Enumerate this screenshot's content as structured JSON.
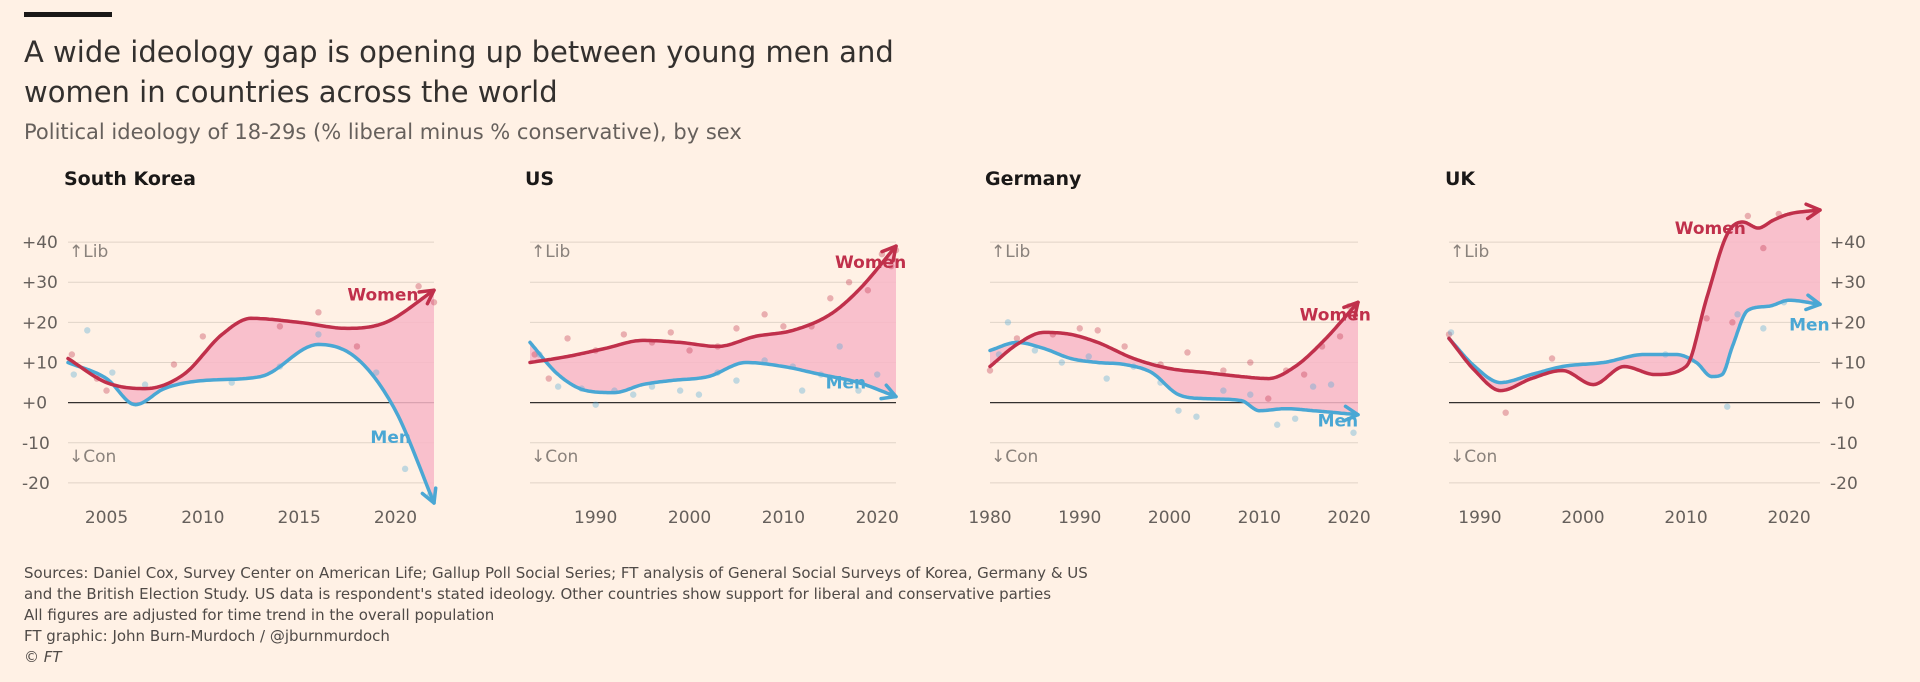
{
  "header": {
    "title": "A wide ideology gap is opening up between young men and women in countries across the world",
    "subtitle": "Political ideology of 18-29s (% liberal minus % conservative), by sex"
  },
  "footer": {
    "line1": "Sources: Daniel Cox, Survey Center on American Life; Gallup Poll Social Series; FT analysis of General Social Surveys of Korea, Germany & US",
    "line2": "and the British Election Study. US data is respondent's stated ideology. Other countries show support for liberal and conservative parties",
    "line3": "All figures are adjusted for time trend in the overall population",
    "line4": "FT graphic: John Burn-Murdoch / @jburnmurdoch",
    "copyright": "© FT"
  },
  "colors": {
    "women": "#c0304b",
    "men": "#4aa7d4",
    "gap_fill": "#f8b7c8",
    "gridline": "#e0d4c8",
    "zero_line": "#33302e",
    "background": "#fff1e5"
  },
  "chart_data": [
    {
      "type": "line",
      "title": "South Korea",
      "xlim": [
        2003,
        2022
      ],
      "ylim": [
        -25,
        45
      ],
      "x_ticks": [
        2005,
        2010,
        2015,
        2020
      ],
      "y_ticks": [
        "+40",
        "+30",
        "+20",
        "+10",
        "+0",
        "-10",
        "-20"
      ],
      "y_tick_values": [
        40,
        30,
        20,
        10,
        0,
        -10,
        -20
      ],
      "y_axis_side": "left",
      "annotations": {
        "lib": "↑Lib",
        "con": "↓Con"
      },
      "gap_fill": true,
      "series": [
        {
          "name": "Women",
          "x": [
            2003,
            2005,
            2007,
            2009,
            2011,
            2012.5,
            2015,
            2017.5,
            2019.5,
            2022
          ],
          "y": [
            11,
            5,
            3.5,
            7,
            17,
            21,
            20,
            18.5,
            20,
            28
          ]
        },
        {
          "name": "Men",
          "x": [
            2003,
            2005,
            2006.5,
            2008,
            2010,
            2013,
            2016,
            2018,
            2020,
            2022
          ],
          "y": [
            10,
            6,
            -0.5,
            3.5,
            5.5,
            6.5,
            14.5,
            11,
            -2,
            -25
          ]
        }
      ],
      "scatter": {
        "women": [
          [
            2003.2,
            12
          ],
          [
            2004.5,
            6
          ],
          [
            2005,
            3
          ],
          [
            2008.5,
            9.5
          ],
          [
            2010,
            16.5
          ],
          [
            2014,
            19
          ],
          [
            2016,
            22.5
          ],
          [
            2018,
            14
          ],
          [
            2021.2,
            29
          ],
          [
            2022,
            25
          ]
        ],
        "men": [
          [
            2003.3,
            7
          ],
          [
            2004,
            18
          ],
          [
            2005.3,
            7.5
          ],
          [
            2007,
            4.5
          ],
          [
            2011.5,
            5
          ],
          [
            2014,
            9
          ],
          [
            2016,
            17
          ],
          [
            2019,
            7.5
          ],
          [
            2020.5,
            -16.5
          ],
          [
            2021.8,
            -23
          ]
        ]
      },
      "labels": [
        {
          "text": "Women",
          "series": "Women",
          "x": 2017.5,
          "y": 25.5
        },
        {
          "text": "Men",
          "series": "Men",
          "x": 2018.7,
          "y": -10
        }
      ]
    },
    {
      "type": "line",
      "title": "US",
      "xlim": [
        1983,
        2022
      ],
      "ylim": [
        -25,
        45
      ],
      "x_ticks": [
        1990,
        2000,
        2010,
        2020
      ],
      "y_ticks": [
        "+40",
        "+30",
        "+20",
        "+10",
        "+0",
        "-10",
        "-20"
      ],
      "y_tick_values": [
        40,
        30,
        20,
        10,
        0,
        -10,
        -20
      ],
      "y_axis_side": "none",
      "annotations": {
        "lib": "↑Lib",
        "con": "↓Con"
      },
      "gap_fill": true,
      "series": [
        {
          "name": "Women",
          "x": [
            1983,
            1987,
            1991,
            1995,
            1999,
            2003,
            2007,
            2011,
            2015,
            2018,
            2022
          ],
          "y": [
            10,
            11.5,
            13.5,
            15.5,
            15,
            14,
            16.5,
            18,
            22,
            28,
            39
          ]
        },
        {
          "name": "Men",
          "x": [
            1983,
            1986,
            1989,
            1992,
            1995,
            1998,
            2002,
            2006,
            2010,
            2014,
            2018,
            2022
          ],
          "y": [
            15,
            7,
            3,
            2.5,
            4.5,
            5.5,
            6.5,
            10,
            9,
            7,
            5,
            1.5
          ]
        }
      ],
      "scatter": {
        "women": [
          [
            1983.5,
            12
          ],
          [
            1985,
            6
          ],
          [
            1987,
            16
          ],
          [
            1990,
            13
          ],
          [
            1993,
            17
          ],
          [
            1996,
            15
          ],
          [
            1998,
            17.5
          ],
          [
            2000,
            13
          ],
          [
            2003,
            14
          ],
          [
            2005,
            18.5
          ],
          [
            2008,
            22
          ],
          [
            2010,
            19
          ],
          [
            2013,
            19
          ],
          [
            2015,
            26
          ],
          [
            2017,
            30
          ],
          [
            2019,
            28
          ],
          [
            2020.5,
            37
          ],
          [
            2021.5,
            34
          ],
          [
            2022,
            38
          ]
        ],
        "men": [
          [
            1984,
            12
          ],
          [
            1986,
            4
          ],
          [
            1988.5,
            3.5
          ],
          [
            1990,
            -0.5
          ],
          [
            1992,
            3
          ],
          [
            1994,
            2
          ],
          [
            1996,
            4
          ],
          [
            1999,
            3
          ],
          [
            2001,
            2
          ],
          [
            2003,
            7.5
          ],
          [
            2005,
            5.5
          ],
          [
            2008,
            10.5
          ],
          [
            2011,
            9
          ],
          [
            2012,
            3
          ],
          [
            2014,
            7
          ],
          [
            2016,
            14
          ],
          [
            2018,
            3
          ],
          [
            2020,
            7
          ],
          [
            2021.5,
            2
          ]
        ]
      },
      "labels": [
        {
          "text": "Women",
          "series": "Women",
          "x": 2015.5,
          "y": 33.5
        },
        {
          "text": "Men",
          "series": "Men",
          "x": 2014.5,
          "y": 3.5
        }
      ]
    },
    {
      "type": "line",
      "title": "Germany",
      "xlim": [
        1980,
        2021
      ],
      "ylim": [
        -25,
        45
      ],
      "x_ticks": [
        1980,
        1990,
        2000,
        2010,
        2020
      ],
      "y_ticks": [
        "+40",
        "+30",
        "+20",
        "+10",
        "+0",
        "-10",
        "-20"
      ],
      "y_tick_values": [
        40,
        30,
        20,
        10,
        0,
        -10,
        -20
      ],
      "y_axis_side": "none",
      "annotations": {
        "lib": "↑Lib",
        "con": "↓Con"
      },
      "gap_fill": true,
      "series": [
        {
          "name": "Women",
          "x": [
            1980,
            1983,
            1986,
            1989,
            1992,
            1996,
            2000,
            2004,
            2008,
            2011,
            2014,
            2017,
            2021
          ],
          "y": [
            9,
            14.5,
            17.5,
            17,
            15,
            11,
            8.5,
            7.5,
            6.5,
            6,
            9,
            15,
            25
          ]
        },
        {
          "name": "Men",
          "x": [
            1980,
            1983,
            1986,
            1989,
            1992,
            1995,
            1998,
            2001,
            2004,
            2008,
            2010,
            2013,
            2016,
            2021
          ],
          "y": [
            13,
            15,
            13.5,
            11,
            10,
            9.5,
            7.5,
            2,
            1,
            0.5,
            -2,
            -1.5,
            -2,
            -3
          ]
        }
      ],
      "scatter": {
        "women": [
          [
            1980,
            8
          ],
          [
            1983,
            16
          ],
          [
            1987,
            17
          ],
          [
            1990,
            18.5
          ],
          [
            1992,
            18
          ],
          [
            1995,
            14
          ],
          [
            1999,
            9.5
          ],
          [
            2002,
            12.5
          ],
          [
            2006,
            8
          ],
          [
            2009,
            10
          ],
          [
            2011,
            1
          ],
          [
            2013,
            8
          ],
          [
            2015,
            7
          ],
          [
            2017,
            14
          ],
          [
            2019,
            16.5
          ],
          [
            2020,
            24
          ]
        ],
        "men": [
          [
            1981,
            12
          ],
          [
            1982,
            20
          ],
          [
            1985,
            13
          ],
          [
            1988,
            10
          ],
          [
            1991,
            11.5
          ],
          [
            1993,
            6
          ],
          [
            1996,
            9
          ],
          [
            1999,
            5
          ],
          [
            2001,
            -2
          ],
          [
            2003,
            -3.5
          ],
          [
            2006,
            3
          ],
          [
            2009,
            2
          ],
          [
            2012,
            -5.5
          ],
          [
            2014,
            -4
          ],
          [
            2016,
            4
          ],
          [
            2018,
            4.5
          ],
          [
            2020.5,
            -7.5
          ]
        ]
      },
      "labels": [
        {
          "text": "Women",
          "series": "Women",
          "x": 2014.5,
          "y": 20.5
        },
        {
          "text": "Men",
          "series": "Men",
          "x": 2016.5,
          "y": -6
        }
      ]
    },
    {
      "type": "line",
      "title": "UK",
      "xlim": [
        1987,
        2023
      ],
      "ylim": [
        -25,
        45
      ],
      "x_ticks": [
        1990,
        2000,
        2010,
        2020
      ],
      "y_ticks": [
        "+40",
        "+30",
        "+20",
        "+10",
        "+0",
        "-10",
        "-20"
      ],
      "y_tick_values": [
        40,
        30,
        20,
        10,
        0,
        -10,
        -20
      ],
      "y_axis_side": "right",
      "annotations": {
        "lib": "↑Lib",
        "con": "↓Con"
      },
      "gap_fill": true,
      "series": [
        {
          "name": "Women",
          "x": [
            1987,
            1989.5,
            1992,
            1995,
            1998,
            2001,
            2004,
            2007,
            2010,
            2012,
            2014,
            2015.5,
            2017,
            2018.5,
            2020,
            2023
          ],
          "y": [
            16,
            8,
            3,
            6,
            8,
            4.5,
            9,
            7,
            9,
            26,
            42,
            45,
            43.5,
            45.5,
            47,
            48
          ]
        },
        {
          "name": "Men",
          "x": [
            1987,
            1989.5,
            1992,
            1995,
            1998,
            2002,
            2006,
            2009,
            2011,
            2012.5,
            2013.5,
            2014.5,
            2016,
            2018,
            2020,
            2023
          ],
          "y": [
            16,
            9,
            5,
            7,
            9,
            10,
            12,
            12,
            10,
            6.5,
            7,
            14,
            23,
            24,
            25.5,
            24.5
          ]
        }
      ],
      "scatter": {
        "women": [
          [
            1987,
            17
          ],
          [
            1992.5,
            -2.5
          ],
          [
            1997,
            11
          ],
          [
            2012,
            21
          ],
          [
            2014.5,
            20
          ],
          [
            2016,
            46.5
          ],
          [
            2017.5,
            38.5
          ],
          [
            2019,
            47
          ]
        ],
        "men": [
          [
            1987.2,
            17.5
          ],
          [
            2008,
            12
          ],
          [
            2014,
            -1
          ],
          [
            2015,
            22
          ],
          [
            2017.5,
            18.5
          ],
          [
            2019.5,
            25
          ]
        ]
      },
      "labels": [
        {
          "text": "Women",
          "series": "Women",
          "x": 2008.9,
          "y": 42
        },
        {
          "text": "Men",
          "series": "Men",
          "x": 2020,
          "y": 18
        }
      ]
    }
  ]
}
